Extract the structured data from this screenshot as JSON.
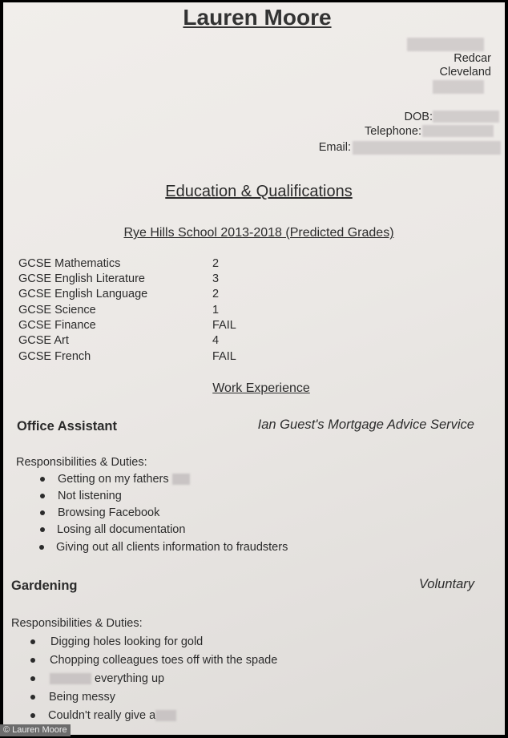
{
  "name": "Lauren Moore",
  "address": {
    "town": "Redcar",
    "county": "Cleveland"
  },
  "contact": {
    "dob_label": "DOB:",
    "telephone_label": "Telephone:",
    "email_label": "Email:"
  },
  "education": {
    "heading": "Education & Qualifications",
    "school": "Rye Hills School 2013-2018 (Predicted Grades)",
    "subjects": [
      {
        "name": "GCSE Mathematics",
        "grade": "2"
      },
      {
        "name": "GCSE English Literature",
        "grade": "3"
      },
      {
        "name": "GCSE English Language",
        "grade": "2"
      },
      {
        "name": "GCSE Science",
        "grade": "1"
      },
      {
        "name": "GCSE Finance",
        "grade": "FAIL"
      },
      {
        "name": "GCSE Art",
        "grade": "4"
      },
      {
        "name": "GCSE French",
        "grade": "FAIL"
      }
    ]
  },
  "work": {
    "heading": "Work Experience",
    "jobs": [
      {
        "title": "Office Assistant",
        "employer": "Ian Guest's Mortgage Advice Service",
        "duties_label": "Responsibilities & Duties:",
        "duties": [
          "Getting on my fathers",
          "Not listening",
          "Browsing Facebook",
          "Losing all documentation",
          "Giving out all clients information to fraudsters"
        ]
      },
      {
        "title": "Gardening",
        "employer": "Voluntary",
        "duties_label": "Responsibilities & Duties:",
        "duties": [
          "Digging holes looking for gold",
          "Chopping colleagues toes off with the spade",
          "everything up",
          "Being messy",
          "Couldn't really give a"
        ]
      }
    ]
  },
  "copyright": "© Lauren Moore"
}
